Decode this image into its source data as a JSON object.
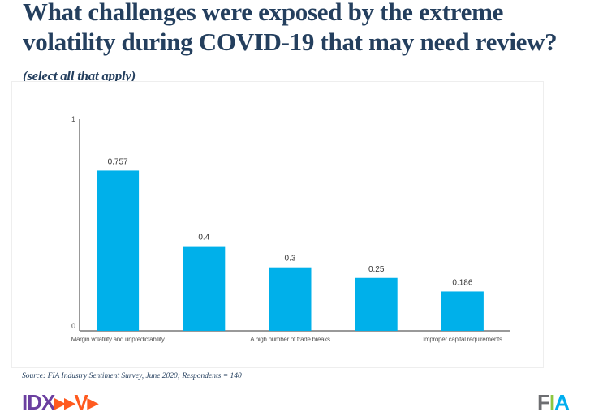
{
  "title": "What challenges were exposed by the extreme volatility during COVID-19 that may need review?",
  "subtitle": "(select all that apply)",
  "source": "Source: FIA Industry Sentiment Survey, June 2020; Respondents = 140",
  "logos": {
    "left": "IDX-V",
    "right": "FIA"
  },
  "chart_data": {
    "type": "bar",
    "categories": [
      "Margin volatility and unpredictability",
      "",
      "A high number of trade breaks",
      "",
      "Improper capital requirements"
    ],
    "values": [
      0.757,
      0.4,
      0.3,
      0.25,
      0.186
    ],
    "value_labels": [
      "0.757",
      "0.4",
      "0.3",
      "0.25",
      "0.186"
    ],
    "yticks": [
      "0",
      "1"
    ],
    "ylim": [
      0,
      1
    ],
    "color": "#00b0ea",
    "grid": false
  }
}
